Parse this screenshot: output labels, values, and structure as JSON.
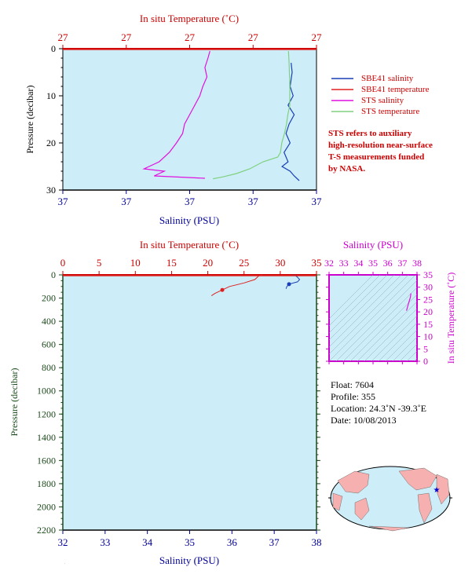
{
  "top_chart": {
    "x_top_label": "In situ Temperature (˚C)",
    "x_bottom_label": "Salinity (PSU)",
    "y_label": "Pressure (decibar)",
    "x_top_ticks": [
      "27",
      "27",
      "27",
      "27",
      "27"
    ],
    "x_bottom_ticks": [
      "37",
      "37",
      "37",
      "37",
      "37"
    ],
    "y_ticks": [
      "0",
      "10",
      "20",
      "30"
    ],
    "ylim": [
      0,
      30
    ],
    "legend": [
      {
        "label": "SBE41 salinity",
        "color": "#1a3fb5"
      },
      {
        "label": "SBE41 temperature",
        "color": "#e02020"
      },
      {
        "label": "STS salinity",
        "color": "#e010e0"
      },
      {
        "label": "STS temperature",
        "color": "#80d080"
      }
    ],
    "note": [
      "STS refers to auxiliary",
      "high-resolution near-surface",
      "T-S measurements funded",
      "by NASA."
    ]
  },
  "bottom_chart": {
    "x_top_label": "In situ Temperature (˚C)",
    "x_bottom_label": "Salinity (PSU)",
    "y_label": "Pressure (decibar)",
    "x_top_ticks": [
      "0",
      "5",
      "10",
      "15",
      "20",
      "25",
      "30",
      "35"
    ],
    "x_bottom_ticks": [
      "32",
      "33",
      "34",
      "35",
      "36",
      "37",
      "38"
    ],
    "y_ticks": [
      "0",
      "200",
      "400",
      "600",
      "800",
      "1000",
      "1200",
      "1400",
      "1600",
      "1800",
      "2000",
      "2200"
    ]
  },
  "ts_chart": {
    "x_label": "Salinity (PSU)",
    "y_label": "In situ Temperature (˚C)",
    "x_ticks": [
      "32",
      "33",
      "34",
      "35",
      "36",
      "37",
      "38"
    ],
    "y_ticks": [
      "0",
      "5",
      "10",
      "15",
      "20",
      "25",
      "30",
      "35"
    ]
  },
  "info": {
    "float": "Float:  7604",
    "profile": "Profile:  355",
    "location": "Location:  24.3˚N  -39.3˚E",
    "date": "Date:  10/08/2013"
  },
  "colors": {
    "plot_bg": "#cdeef8",
    "sbe_salinity": "#1a3fb5",
    "sbe_temperature": "#e02020",
    "sts_salinity": "#e010e0",
    "sts_temperature": "#80d080"
  },
  "chart_data": [
    {
      "type": "line",
      "title": "",
      "ylabel": "Pressure (decibar)",
      "xlabel": "Salinity (PSU)",
      "x2label": "In situ Temperature (˚C)",
      "ylim": [
        0,
        30
      ],
      "y_inverted": true,
      "series": [
        {
          "name": "SBE41 salinity",
          "axis": "salinity",
          "points": [
            [
              37.75,
              3
            ],
            [
              37.76,
              5
            ],
            [
              37.74,
              8
            ],
            [
              37.77,
              10
            ],
            [
              37.72,
              12
            ],
            [
              37.78,
              14
            ],
            [
              37.73,
              16
            ],
            [
              37.7,
              18
            ],
            [
              37.74,
              20
            ],
            [
              37.68,
              22
            ],
            [
              37.72,
              24
            ],
            [
              37.66,
              25
            ],
            [
              37.74,
              26
            ],
            [
              37.78,
              27
            ],
            [
              37.83,
              28
            ]
          ]
        },
        {
          "name": "SBE41 temperature",
          "axis": "temperature",
          "points": []
        },
        {
          "name": "STS salinity",
          "axis": "salinity",
          "points": [
            [
              36.95,
              0.5
            ],
            [
              36.93,
              2
            ],
            [
              36.9,
              4
            ],
            [
              36.92,
              6
            ],
            [
              36.88,
              8
            ],
            [
              36.85,
              10
            ],
            [
              36.8,
              12
            ],
            [
              36.75,
              14
            ],
            [
              36.7,
              16
            ],
            [
              36.68,
              18
            ],
            [
              36.62,
              20
            ],
            [
              36.55,
              22
            ],
            [
              36.45,
              24
            ],
            [
              36.3,
              25.5
            ],
            [
              36.5,
              26
            ],
            [
              36.4,
              27
            ],
            [
              36.9,
              27.5
            ]
          ]
        },
        {
          "name": "STS temperature",
          "axis": "temperature",
          "points": [
            [
              27.58,
              0.5
            ],
            [
              27.59,
              3
            ],
            [
              27.6,
              8
            ],
            [
              27.6,
              12
            ],
            [
              27.57,
              14
            ],
            [
              27.55,
              16
            ],
            [
              27.52,
              18
            ],
            [
              27.48,
              20
            ],
            [
              27.46,
              22
            ],
            [
              27.42,
              23
            ],
            [
              27.2,
              24
            ],
            [
              27.0,
              25.5
            ],
            [
              26.8,
              26.5
            ],
            [
              26.6,
              27.2
            ],
            [
              26.45,
              27.6
            ]
          ]
        }
      ]
    },
    {
      "type": "line",
      "title": "",
      "ylabel": "Pressure (decibar)",
      "xlabel": "Salinity (PSU)",
      "x2label": "In situ Temperature (˚C)",
      "xlim": [
        32,
        38
      ],
      "x2lim": [
        0,
        35
      ],
      "ylim": [
        0,
        2200
      ],
      "y_inverted": true,
      "series": [
        {
          "name": "salinity",
          "axis": "salinity",
          "points": [
            [
              37.45,
              0
            ],
            [
              37.5,
              5
            ],
            [
              37.55,
              20
            ],
            [
              37.6,
              40
            ],
            [
              37.55,
              60
            ],
            [
              37.35,
              80
            ],
            [
              37.3,
              100
            ],
            [
              37.28,
              120
            ]
          ]
        },
        {
          "name": "temperature",
          "axis": "temperature",
          "points": [
            [
              27.5,
              0
            ],
            [
              27.2,
              5
            ],
            [
              27.0,
              10
            ],
            [
              26.5,
              40
            ],
            [
              25.0,
              70
            ],
            [
              23.0,
              100
            ],
            [
              22.0,
              130
            ],
            [
              21.0,
              160
            ],
            [
              20.5,
              180
            ]
          ]
        }
      ]
    },
    {
      "type": "line",
      "title": "",
      "xlabel": "Salinity (PSU)",
      "ylabel": "In situ Temperature (˚C)",
      "xlim": [
        32,
        38
      ],
      "ylim": [
        0,
        35
      ],
      "series": [
        {
          "name": "T-S",
          "points": [
            [
              37.28,
              20.5
            ],
            [
              37.35,
              22
            ],
            [
              37.45,
              24
            ],
            [
              37.55,
              26
            ],
            [
              37.58,
              27.5
            ]
          ]
        }
      ]
    }
  ]
}
